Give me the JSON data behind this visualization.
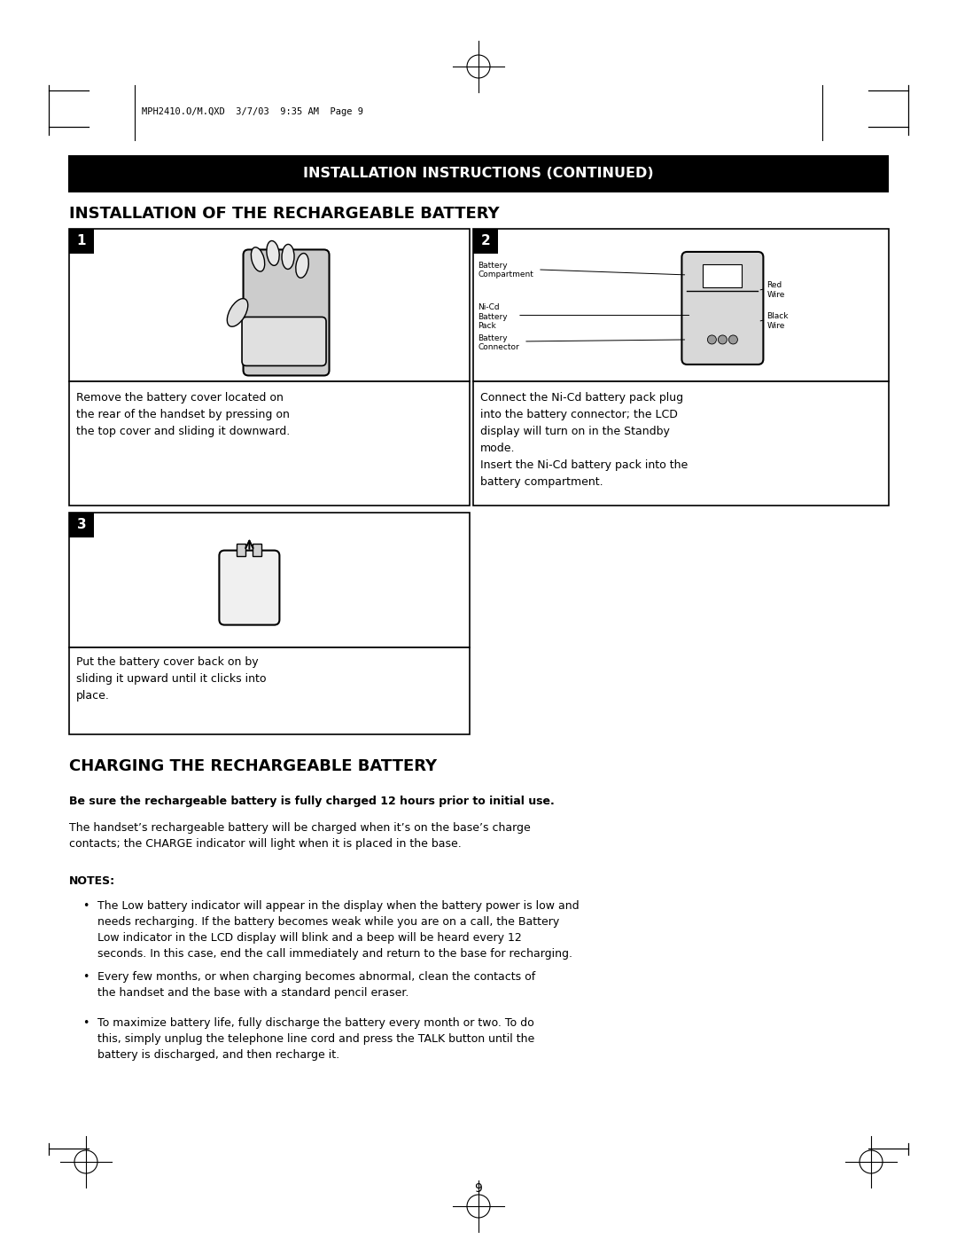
{
  "page_bg": "#ffffff",
  "header_text": "INSTALLATION INSTRUCTIONS (CONTINUED)",
  "header_bg": "#000000",
  "header_text_color": "#ffffff",
  "section1_title": "INSTALLATION OF THE RECHARGEABLE BATTERY",
  "section2_title": "CHARGING THE RECHARGEABLE BATTERY",
  "step1_desc": "Remove the battery cover located on\nthe rear of the handset by pressing on\nthe top cover and sliding it downward.",
  "step2_desc_bold": "Connect the Ni-Cd battery pack plug\ninto the battery connector; the LCD\ndisplay will turn on in the Standby\nmode.",
  "step2_desc_normal": "Insert the Ni-Cd battery pack into the\nbattery compartment.",
  "step3_desc": "Put the battery cover back on by\nsliding it upward until it clicks into\nplace.",
  "charging_bold": "Be sure the rechargeable battery is fully charged 12 hours prior to initial use.",
  "charging_normal": "The handset’s rechargeable battery will be charged when it’s on the base’s charge\ncontacts; the CHARGE indicator will light when it is placed in the base.",
  "notes_label": "NOTES:",
  "bullet1": "The Low battery indicator will appear in the display when the battery power is low and\nneeds recharging. If the battery becomes weak while you are on a call, the Battery\nLow indicator in the LCD display will blink and a beep will be heard every 12\nseconds. In this case, end the call immediately and return to the base for recharging.",
  "bullet2": "Every few months, or when charging becomes abnormal, clean the contacts of\nthe handset and the base with a standard pencil eraser.",
  "bullet3": "To maximize battery life, fully discharge the battery every month or two. To do\nthis, simply unplug the telephone line cord and press the TALK button until the\nbattery is discharged, and then recharge it.",
  "page_number": "9",
  "file_info": "MPH2410.O/M.QXD  3/7/03  9:35 AM  Page 9"
}
